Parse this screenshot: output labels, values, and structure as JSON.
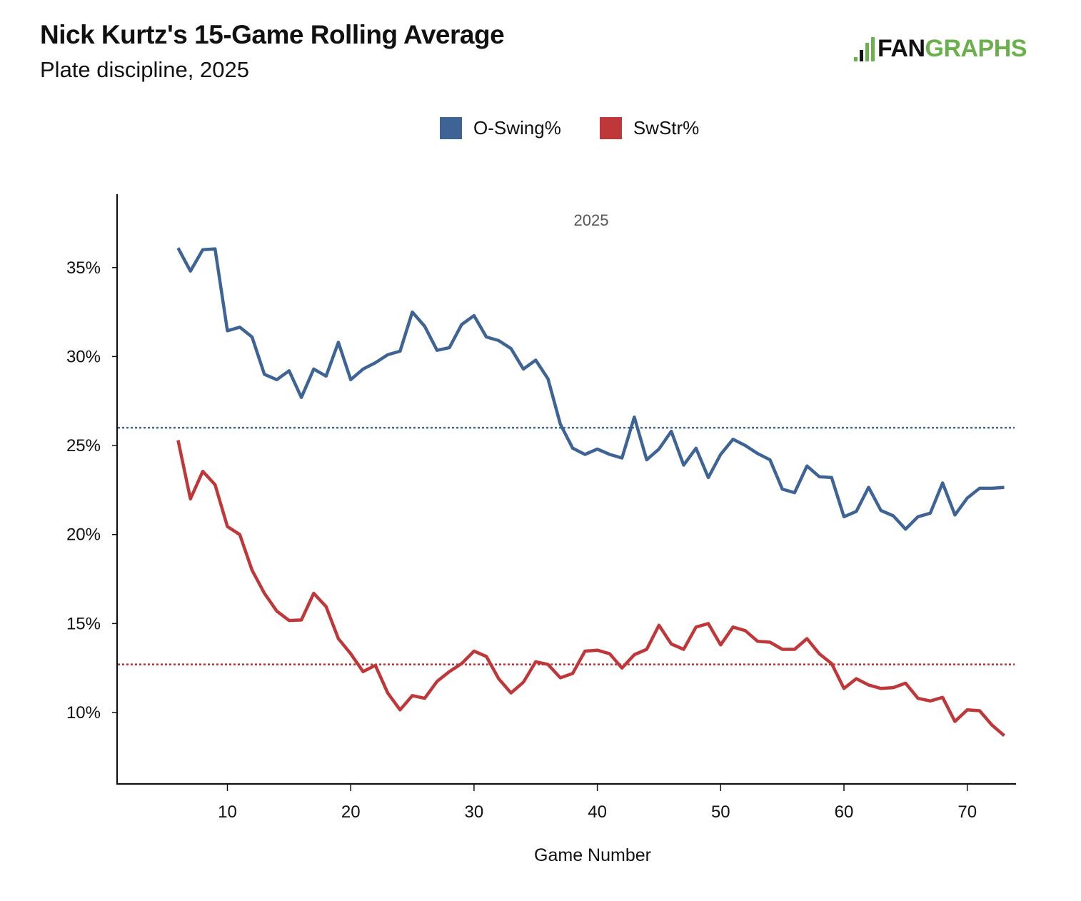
{
  "header": {
    "title": "Nick Kurtz's 15-Game Rolling Average",
    "subtitle": "Plate discipline, 2025"
  },
  "logo": {
    "text_dark": "FAN",
    "text_green": "GRAPHS",
    "colors": {
      "dark": "#111111",
      "green": "#6ab04c"
    }
  },
  "chart_data": {
    "type": "line",
    "title": "Nick Kurtz's 15-Game Rolling Average",
    "subtitle": "Plate discipline, 2025",
    "annotation": "2025",
    "xlabel": "Game Number",
    "ylabel": "",
    "xlim": [
      1,
      74
    ],
    "ylim": [
      6,
      38.5
    ],
    "x_ticks": [
      10,
      20,
      30,
      40,
      50,
      60,
      70
    ],
    "x_tick_labels": [
      "10",
      "20",
      "30",
      "40",
      "50",
      "60",
      "70"
    ],
    "y_ticks": [
      10,
      15,
      20,
      25,
      30,
      35
    ],
    "y_tick_labels": [
      "10%",
      "15%",
      "20%",
      "25%",
      "30%",
      "35%"
    ],
    "grid": false,
    "legend_position": "top-center",
    "x": [
      6,
      7,
      8,
      9,
      10,
      11,
      12,
      13,
      14,
      15,
      16,
      17,
      18,
      19,
      20,
      21,
      22,
      23,
      24,
      25,
      26,
      27,
      28,
      29,
      30,
      31,
      32,
      33,
      34,
      35,
      36,
      37,
      38,
      39,
      40,
      41,
      42,
      43,
      44,
      45,
      46,
      47,
      48,
      49,
      50,
      51,
      52,
      53,
      54,
      55,
      56,
      57,
      58,
      59,
      60,
      61,
      62,
      63,
      64,
      65,
      66,
      67,
      68,
      69,
      70,
      71,
      72,
      73
    ],
    "series": [
      {
        "name": "O-Swing%",
        "color": "#3e6496",
        "season_average": 26.0,
        "values": [
          36.1,
          34.8,
          36.0,
          36.05,
          31.45,
          31.65,
          31.1,
          29.0,
          28.7,
          29.2,
          27.7,
          29.3,
          28.9,
          30.8,
          28.7,
          29.3,
          29.65,
          30.1,
          30.3,
          32.5,
          31.7,
          30.35,
          30.5,
          31.8,
          32.3,
          31.1,
          30.9,
          30.45,
          29.3,
          29.8,
          28.75,
          26.2,
          24.85,
          24.5,
          24.8,
          24.5,
          24.3,
          26.6,
          24.2,
          24.8,
          25.8,
          23.9,
          24.85,
          23.2,
          24.5,
          25.35,
          25.0,
          24.55,
          24.2,
          22.55,
          22.35,
          23.85,
          23.25,
          23.2,
          21.0,
          21.3,
          22.65,
          21.35,
          21.05,
          20.3,
          21.0,
          21.2,
          22.9,
          21.1,
          22.05,
          22.6,
          22.6,
          22.65
        ]
      },
      {
        "name": "SwStr%",
        "color": "#bf3739",
        "season_average": 12.7,
        "values": [
          25.3,
          22.0,
          23.55,
          22.8,
          20.45,
          20.0,
          18.0,
          16.7,
          15.7,
          15.17,
          15.2,
          16.7,
          15.95,
          14.15,
          13.3,
          12.3,
          12.65,
          11.1,
          10.15,
          10.95,
          10.8,
          11.75,
          12.3,
          12.75,
          13.45,
          13.15,
          11.9,
          11.1,
          11.7,
          12.85,
          12.7,
          11.95,
          12.2,
          13.45,
          13.5,
          13.3,
          12.5,
          13.25,
          13.55,
          14.9,
          13.85,
          13.55,
          14.8,
          15.0,
          13.8,
          14.8,
          14.6,
          14.0,
          13.95,
          13.55,
          13.55,
          14.15,
          13.3,
          12.75,
          11.35,
          11.9,
          11.55,
          11.35,
          11.4,
          11.65,
          10.8,
          10.65,
          10.85,
          9.5,
          10.15,
          10.1,
          9.3,
          8.7
        ]
      }
    ]
  }
}
